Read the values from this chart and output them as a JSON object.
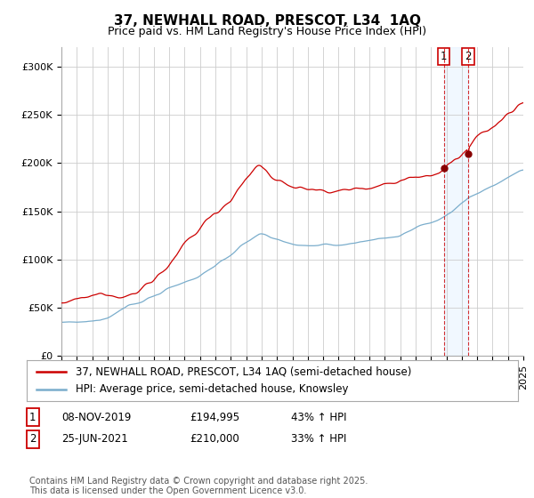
{
  "title": "37, NEWHALL ROAD, PRESCOT, L34  1AQ",
  "subtitle": "Price paid vs. HM Land Registry's House Price Index (HPI)",
  "ylim": [
    0,
    320000
  ],
  "yticks": [
    0,
    50000,
    100000,
    150000,
    200000,
    250000,
    300000
  ],
  "ytick_labels": [
    "£0",
    "£50K",
    "£100K",
    "£150K",
    "£200K",
    "£250K",
    "£300K"
  ],
  "line1_color": "#cc0000",
  "line2_color": "#7aadcc",
  "highlight_color": "#ddeeff",
  "marker1_idx": 298,
  "marker2_idx": 317,
  "marker1_value": 194995,
  "marker2_value": 210000,
  "legend_line1": "37, NEWHALL ROAD, PRESCOT, L34 1AQ (semi-detached house)",
  "legend_line2": "HPI: Average price, semi-detached house, Knowsley",
  "footer": "Contains HM Land Registry data © Crown copyright and database right 2025.\nThis data is licensed under the Open Government Licence v3.0.",
  "bg_color": "#ffffff",
  "grid_color": "#cccccc",
  "title_fontsize": 11,
  "subtitle_fontsize": 9,
  "tick_fontsize": 8,
  "legend_fontsize": 8.5,
  "footer_fontsize": 7
}
